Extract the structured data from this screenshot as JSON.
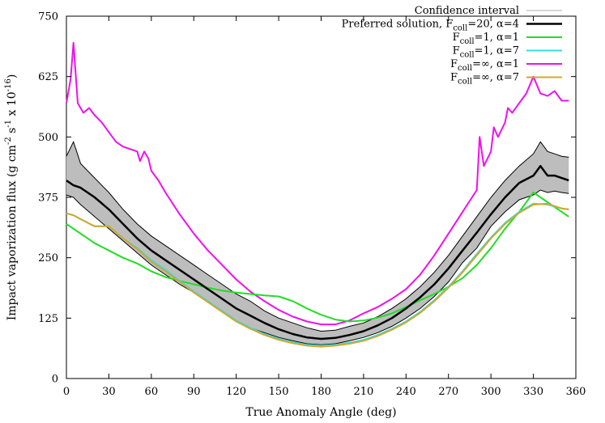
{
  "chart_data": {
    "type": "line",
    "title": "",
    "xlabel": "True Anomaly Angle (deg)",
    "ylabel": {
      "base": "Impact vaporization flux (g cm",
      "exp1": "-2",
      "mid1": " s",
      "exp2": "-1",
      "mid2": " x 10",
      "exp3": "-16",
      "end": ")"
    },
    "xlim": [
      0,
      360
    ],
    "ylim": [
      0,
      750
    ],
    "xticks": [
      0,
      30,
      60,
      90,
      120,
      150,
      180,
      210,
      240,
      270,
      300,
      330,
      360
    ],
    "yticks": [
      0,
      125,
      250,
      375,
      500,
      625,
      750
    ],
    "xticks_labels": [
      "0",
      "30",
      "60",
      "90",
      "120",
      "150",
      "180",
      "210",
      "240",
      "270",
      "300",
      "330",
      "360"
    ],
    "yticks_labels": [
      "0",
      "125",
      "250",
      "375",
      "500",
      "625",
      "750"
    ],
    "legend_position": "top-right",
    "legend": [
      {
        "key": "ci",
        "prefix": "Confidence interval",
        "sub": "",
        "suffix": "",
        "color": "#bdbdbd",
        "width": 1.2
      },
      {
        "key": "pref",
        "prefix": "Preferred solution, F",
        "sub": "coll",
        "suffix": "=20, α=4",
        "color": "#000000",
        "width": 2.5
      },
      {
        "key": "s1",
        "prefix": "F",
        "sub": "coll",
        "suffix": "=1, α=1",
        "color": "#22dd22",
        "width": 2
      },
      {
        "key": "s2",
        "prefix": "F",
        "sub": "coll",
        "suffix": "=1, α=7",
        "color": "#33dddd",
        "width": 2
      },
      {
        "key": "s3",
        "prefix": "F",
        "sub": "coll",
        "suffix": "=∞, α=1",
        "color": "#ee11ee",
        "width": 2
      },
      {
        "key": "s4",
        "prefix": "F",
        "sub": "coll",
        "suffix": "=∞, α=7",
        "color": "#d4a530",
        "width": 2
      }
    ],
    "confidence_interval": {
      "x": [
        0,
        5,
        10,
        20,
        30,
        40,
        50,
        60,
        70,
        80,
        90,
        100,
        110,
        120,
        130,
        140,
        150,
        160,
        170,
        180,
        190,
        200,
        210,
        220,
        230,
        240,
        250,
        260,
        270,
        280,
        290,
        300,
        310,
        320,
        330,
        335,
        340,
        345,
        350,
        355
      ],
      "upper": [
        460,
        490,
        445,
        415,
        385,
        350,
        320,
        295,
        275,
        255,
        235,
        215,
        195,
        175,
        160,
        140,
        125,
        115,
        105,
        98,
        100,
        108,
        115,
        128,
        145,
        165,
        190,
        220,
        255,
        295,
        335,
        375,
        410,
        440,
        465,
        490,
        470,
        465,
        460,
        458
      ],
      "lower": [
        380,
        375,
        360,
        335,
        310,
        285,
        260,
        235,
        215,
        195,
        178,
        160,
        140,
        120,
        105,
        95,
        85,
        78,
        72,
        70,
        72,
        78,
        85,
        95,
        108,
        125,
        145,
        170,
        200,
        240,
        270,
        315,
        345,
        370,
        380,
        390,
        385,
        388,
        385,
        383
      ]
    },
    "series": [
      {
        "key": "pref",
        "name": "Preferred solution, Fcoll=20, α=4",
        "x": [
          0,
          5,
          10,
          20,
          30,
          40,
          50,
          60,
          70,
          80,
          90,
          100,
          110,
          120,
          130,
          140,
          150,
          160,
          170,
          180,
          190,
          200,
          210,
          220,
          230,
          240,
          250,
          260,
          270,
          280,
          290,
          300,
          310,
          320,
          330,
          335,
          340,
          345,
          350,
          355
        ],
        "values": [
          410,
          400,
          395,
          375,
          350,
          320,
          290,
          265,
          245,
          225,
          205,
          185,
          165,
          145,
          130,
          115,
          102,
          92,
          85,
          82,
          84,
          90,
          98,
          110,
          125,
          145,
          168,
          195,
          228,
          265,
          302,
          340,
          375,
          405,
          420,
          440,
          420,
          420,
          415,
          410
        ]
      },
      {
        "key": "s1",
        "name": "Fcoll=1, α=1",
        "x": [
          0,
          10,
          20,
          30,
          40,
          50,
          60,
          70,
          80,
          90,
          100,
          110,
          120,
          130,
          140,
          150,
          160,
          170,
          180,
          190,
          200,
          210,
          220,
          230,
          240,
          250,
          260,
          270,
          280,
          290,
          300,
          310,
          320,
          330,
          340,
          350,
          355
        ],
        "values": [
          320,
          300,
          280,
          265,
          250,
          238,
          222,
          210,
          202,
          195,
          188,
          182,
          178,
          175,
          172,
          170,
          160,
          145,
          132,
          122,
          118,
          120,
          126,
          135,
          148,
          162,
          175,
          190,
          208,
          235,
          270,
          310,
          345,
          385,
          365,
          345,
          335
        ]
      },
      {
        "key": "s2",
        "name": "Fcoll=1, α=7",
        "x": [
          0,
          5,
          10,
          20,
          30,
          40,
          50,
          60,
          70,
          80,
          90,
          100,
          110,
          120,
          130,
          140,
          150,
          160,
          170,
          180,
          190,
          200,
          210,
          220,
          230,
          240,
          250,
          260,
          270,
          280,
          290,
          300,
          310,
          320,
          330,
          340,
          350,
          355
        ],
        "values": [
          342,
          338,
          330,
          315,
          315,
          290,
          270,
          245,
          225,
          202,
          180,
          160,
          140,
          120,
          105,
          92,
          82,
          75,
          70,
          68,
          70,
          74,
          80,
          90,
          103,
          118,
          138,
          162,
          190,
          222,
          258,
          292,
          322,
          345,
          362,
          360,
          352,
          350
        ]
      },
      {
        "key": "s3",
        "name": "Fcoll=∞, α=1",
        "x": [
          0,
          3,
          5,
          8,
          12,
          16,
          20,
          25,
          30,
          35,
          40,
          45,
          50,
          52,
          55,
          58,
          60,
          65,
          70,
          80,
          90,
          100,
          110,
          120,
          130,
          140,
          150,
          160,
          170,
          180,
          190,
          200,
          210,
          220,
          230,
          240,
          250,
          260,
          270,
          280,
          290,
          292,
          295,
          300,
          302,
          305,
          310,
          312,
          315,
          320,
          325,
          330,
          335,
          340,
          345,
          350,
          355
        ],
        "values": [
          570,
          620,
          695,
          570,
          550,
          560,
          545,
          530,
          510,
          490,
          480,
          475,
          470,
          450,
          470,
          455,
          430,
          410,
          385,
          340,
          300,
          265,
          235,
          205,
          180,
          160,
          142,
          128,
          118,
          112,
          112,
          120,
          135,
          148,
          165,
          185,
          215,
          255,
          300,
          345,
          390,
          500,
          440,
          470,
          520,
          500,
          530,
          560,
          550,
          570,
          590,
          625,
          590,
          585,
          595,
          575,
          575
        ]
      },
      {
        "key": "s4",
        "name": "Fcoll=∞, α=7",
        "x": [
          0,
          5,
          10,
          20,
          30,
          40,
          50,
          60,
          70,
          80,
          90,
          100,
          110,
          120,
          130,
          140,
          150,
          160,
          170,
          180,
          190,
          200,
          210,
          220,
          230,
          240,
          250,
          260,
          270,
          280,
          290,
          300,
          310,
          320,
          330,
          340,
          350,
          355
        ],
        "values": [
          342,
          338,
          330,
          315,
          315,
          290,
          268,
          242,
          222,
          200,
          178,
          158,
          138,
          118,
          103,
          90,
          80,
          73,
          68,
          66,
          68,
          72,
          78,
          88,
          101,
          116,
          136,
          160,
          188,
          220,
          255,
          290,
          320,
          343,
          360,
          362,
          352,
          350
        ]
      }
    ]
  }
}
